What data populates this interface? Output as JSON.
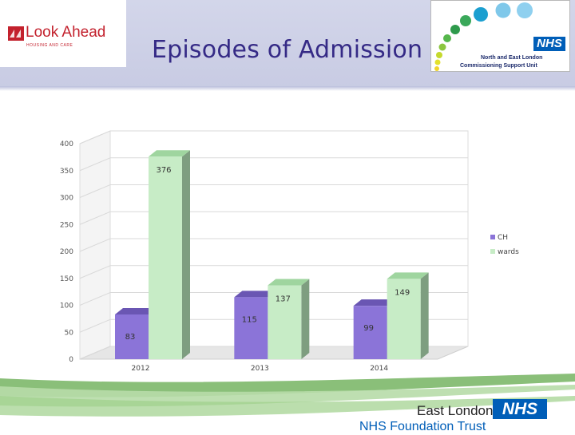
{
  "slide": {
    "title": "Episodes of Admission"
  },
  "logos": {
    "look_ahead": {
      "name": "Look Ahead",
      "tagline": "HOUSING AND CARE"
    },
    "ne_london": {
      "nhs": "NHS",
      "line1": "North and East London",
      "line2": "Commissioning Support Unit"
    },
    "east_london": {
      "name": "East London",
      "nhs": "NHS",
      "trust": "NHS Foundation Trust"
    }
  },
  "colors": {
    "title": "#352a86",
    "ch_series": "#8a72d6",
    "wards_series": "#c6ecc6",
    "nhs_blue": "#005eb8",
    "look_ahead_red": "#c3212d"
  },
  "chart_data": {
    "type": "bar",
    "categories": [
      "2012",
      "2013",
      "2014"
    ],
    "series": [
      {
        "name": "CH",
        "values": [
          83,
          115,
          99
        ]
      },
      {
        "name": "wards",
        "values": [
          376,
          137,
          149
        ]
      }
    ],
    "y_ticks": [
      "0",
      "50",
      "100",
      "150",
      "200",
      "250",
      "300",
      "350",
      "400"
    ],
    "ylim": [
      0,
      400
    ],
    "grid": true,
    "legend_position": "right",
    "style": "3d-clustered-column"
  }
}
